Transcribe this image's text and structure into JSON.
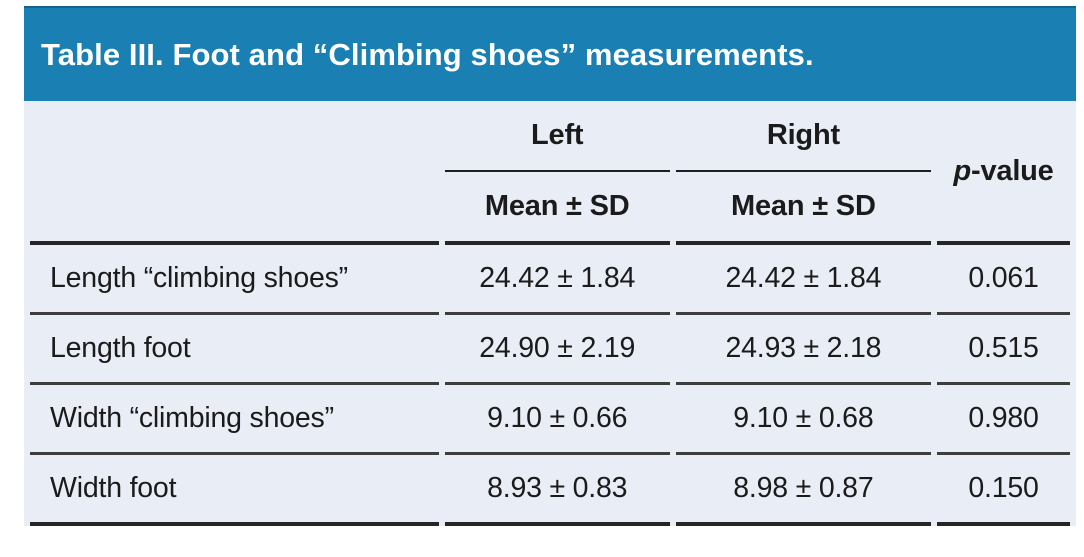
{
  "title": "Table III. Foot and “Climbing shoes” measurements.",
  "header": {
    "spanner_left": "Left",
    "spanner_right": "Right",
    "sub_left": "Mean ± SD",
    "sub_right": "Mean ± SD",
    "pvalue_italic": "p",
    "pvalue_rest": "-value"
  },
  "rows": [
    {
      "label": "Length “climbing shoes”",
      "left": "24.42 ± 1.84",
      "right": "24.42 ± 1.84",
      "p": "0.061"
    },
    {
      "label": "Length foot",
      "left": "24.90 ± 2.19",
      "right": "24.93 ± 2.18",
      "p": "0.515"
    },
    {
      "label": "Width “climbing shoes”",
      "left": "9.10 ± 0.66",
      "right": "9.10 ± 0.68",
      "p": "0.980"
    },
    {
      "label": "Width foot",
      "left": "8.93 ± 0.83",
      "right": "8.98 ± 0.87",
      "p": "0.150"
    }
  ],
  "colors": {
    "header_bg": "#1a7fb2",
    "header_top_edge": "#14648f",
    "body_bg": "#e9edf6",
    "rule_dark": "#262626",
    "rule_row": "#3d3d3d",
    "spanner_rule": "#1f1f1f",
    "title_text": "#ffffff",
    "body_text": "#1b1b1b"
  }
}
